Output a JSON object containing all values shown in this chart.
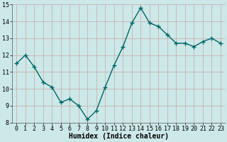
{
  "x": [
    0,
    1,
    2,
    3,
    4,
    5,
    6,
    7,
    8,
    9,
    10,
    11,
    12,
    13,
    14,
    15,
    16,
    17,
    18,
    19,
    20,
    21,
    22,
    23
  ],
  "y": [
    11.5,
    12.0,
    11.3,
    10.4,
    10.1,
    9.2,
    9.4,
    9.0,
    8.2,
    8.7,
    10.1,
    11.4,
    12.5,
    13.9,
    14.8,
    13.9,
    13.7,
    13.2,
    12.7,
    12.7,
    12.5,
    12.8,
    13.0,
    12.7
  ],
  "line_color": "#006666",
  "marker": "+",
  "markersize": 4,
  "linewidth": 1.0,
  "xlabel": "Humidex (Indice chaleur)",
  "xlabel_fontsize": 7,
  "bg_color": "#cce8e8",
  "grid_color": "#c8a8a8",
  "xlim": [
    -0.5,
    23.5
  ],
  "ylim": [
    8,
    15
  ],
  "yticks": [
    8,
    9,
    10,
    11,
    12,
    13,
    14,
    15
  ],
  "xticks": [
    0,
    1,
    2,
    3,
    4,
    5,
    6,
    7,
    8,
    9,
    10,
    11,
    12,
    13,
    14,
    15,
    16,
    17,
    18,
    19,
    20,
    21,
    22,
    23
  ],
  "tick_fontsize": 6,
  "ylabel_fontsize": 7
}
